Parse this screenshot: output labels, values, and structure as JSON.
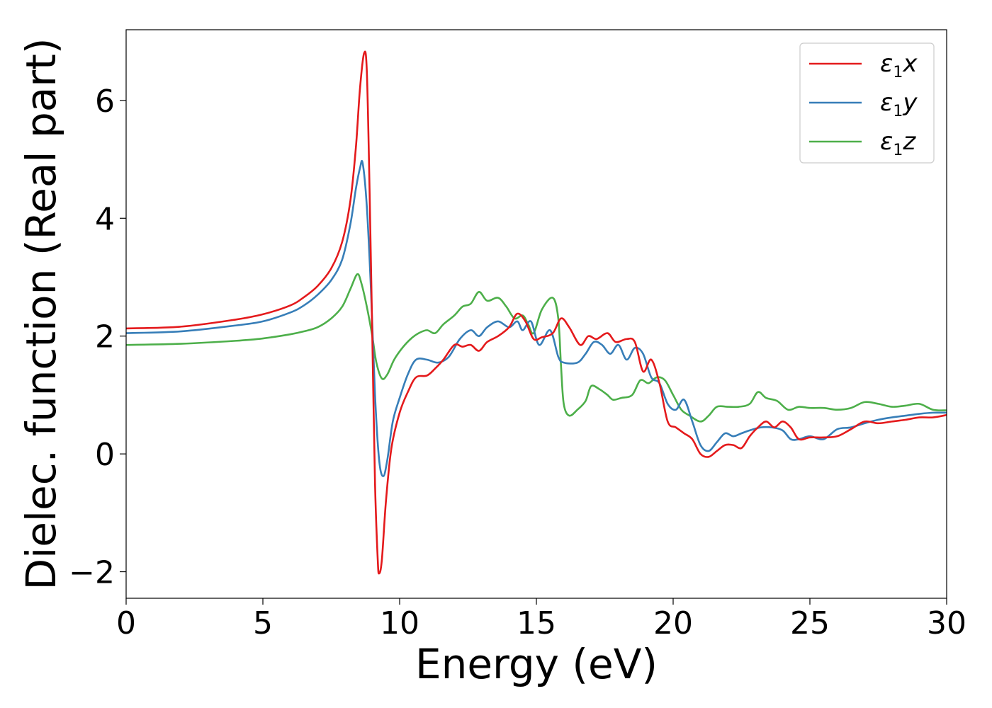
{
  "chart_data": {
    "type": "line",
    "title": "",
    "xlabel": "Energy (eV)",
    "ylabel": "Dielec. function (Real part)",
    "xlim": [
      0,
      30
    ],
    "ylim": [
      -2.45,
      7.2
    ],
    "xticks": [
      {
        "value": 0,
        "label": "0"
      },
      {
        "value": 5,
        "label": "5"
      },
      {
        "value": 10,
        "label": "10"
      },
      {
        "value": 15,
        "label": "15"
      },
      {
        "value": 20,
        "label": "20"
      },
      {
        "value": 25,
        "label": "25"
      },
      {
        "value": 30,
        "label": "30"
      }
    ],
    "yticks": [
      {
        "value": -2,
        "label": "−2"
      },
      {
        "value": 0,
        "label": "0"
      },
      {
        "value": 2,
        "label": "2"
      },
      {
        "value": 4,
        "label": "4"
      },
      {
        "value": 6,
        "label": "6"
      }
    ],
    "grid": false,
    "legend_position": "top-right",
    "series": [
      {
        "name": "ε1x",
        "legend_main": "ε",
        "legend_sub": "1",
        "legend_tail": "x",
        "color": "#e41a1c",
        "points": [
          [
            0,
            2.13
          ],
          [
            2,
            2.16
          ],
          [
            4,
            2.28
          ],
          [
            5,
            2.37
          ],
          [
            6,
            2.52
          ],
          [
            6.5,
            2.66
          ],
          [
            7,
            2.85
          ],
          [
            7.5,
            3.15
          ],
          [
            7.9,
            3.6
          ],
          [
            8.2,
            4.3
          ],
          [
            8.4,
            5.2
          ],
          [
            8.55,
            6.2
          ],
          [
            8.7,
            6.8
          ],
          [
            8.8,
            6.5
          ],
          [
            8.9,
            4.5
          ],
          [
            9.0,
            2.0
          ],
          [
            9.1,
            -0.5
          ],
          [
            9.2,
            -1.8
          ],
          [
            9.25,
            -2.03
          ],
          [
            9.35,
            -1.8
          ],
          [
            9.5,
            -0.8
          ],
          [
            9.7,
            0.1
          ],
          [
            10.0,
            0.7
          ],
          [
            10.3,
            1.05
          ],
          [
            10.6,
            1.3
          ],
          [
            11.0,
            1.33
          ],
          [
            11.3,
            1.45
          ],
          [
            11.6,
            1.6
          ],
          [
            12.0,
            1.85
          ],
          [
            12.3,
            1.82
          ],
          [
            12.6,
            1.85
          ],
          [
            12.9,
            1.75
          ],
          [
            13.2,
            1.9
          ],
          [
            13.6,
            2.0
          ],
          [
            14.0,
            2.15
          ],
          [
            14.3,
            2.38
          ],
          [
            14.6,
            2.25
          ],
          [
            14.9,
            1.95
          ],
          [
            15.2,
            1.98
          ],
          [
            15.6,
            2.05
          ],
          [
            15.9,
            2.3
          ],
          [
            16.2,
            2.15
          ],
          [
            16.6,
            1.85
          ],
          [
            16.9,
            2.0
          ],
          [
            17.2,
            1.95
          ],
          [
            17.6,
            2.05
          ],
          [
            17.9,
            1.9
          ],
          [
            18.3,
            1.95
          ],
          [
            18.6,
            1.9
          ],
          [
            18.9,
            1.4
          ],
          [
            19.2,
            1.6
          ],
          [
            19.5,
            1.2
          ],
          [
            19.8,
            0.55
          ],
          [
            20.1,
            0.45
          ],
          [
            20.4,
            0.35
          ],
          [
            20.7,
            0.25
          ],
          [
            21.0,
            0.0
          ],
          [
            21.3,
            -0.05
          ],
          [
            21.6,
            0.05
          ],
          [
            21.9,
            0.15
          ],
          [
            22.2,
            0.15
          ],
          [
            22.5,
            0.1
          ],
          [
            22.8,
            0.3
          ],
          [
            23.1,
            0.45
          ],
          [
            23.4,
            0.55
          ],
          [
            23.7,
            0.45
          ],
          [
            24.0,
            0.55
          ],
          [
            24.3,
            0.45
          ],
          [
            24.6,
            0.25
          ],
          [
            25.0,
            0.28
          ],
          [
            25.5,
            0.28
          ],
          [
            26.0,
            0.3
          ],
          [
            26.5,
            0.42
          ],
          [
            27.0,
            0.55
          ],
          [
            27.5,
            0.52
          ],
          [
            28.0,
            0.55
          ],
          [
            28.5,
            0.58
          ],
          [
            29.0,
            0.62
          ],
          [
            29.5,
            0.62
          ],
          [
            30.0,
            0.66
          ]
        ]
      },
      {
        "name": "ε1y",
        "legend_main": "ε",
        "legend_sub": "1",
        "legend_tail": "y",
        "color": "#377eb8",
        "points": [
          [
            0,
            2.05
          ],
          [
            2,
            2.08
          ],
          [
            4,
            2.18
          ],
          [
            5,
            2.25
          ],
          [
            6,
            2.4
          ],
          [
            6.5,
            2.52
          ],
          [
            7,
            2.7
          ],
          [
            7.5,
            2.95
          ],
          [
            7.9,
            3.3
          ],
          [
            8.2,
            3.9
          ],
          [
            8.4,
            4.5
          ],
          [
            8.55,
            4.85
          ],
          [
            8.65,
            4.93
          ],
          [
            8.8,
            4.2
          ],
          [
            8.95,
            2.8
          ],
          [
            9.1,
            1.0
          ],
          [
            9.25,
            -0.1
          ],
          [
            9.4,
            -0.38
          ],
          [
            9.55,
            -0.1
          ],
          [
            9.75,
            0.55
          ],
          [
            10.0,
            0.95
          ],
          [
            10.3,
            1.35
          ],
          [
            10.6,
            1.6
          ],
          [
            11.0,
            1.6
          ],
          [
            11.4,
            1.55
          ],
          [
            11.8,
            1.65
          ],
          [
            12.2,
            1.95
          ],
          [
            12.6,
            2.1
          ],
          [
            12.9,
            2.0
          ],
          [
            13.2,
            2.15
          ],
          [
            13.6,
            2.25
          ],
          [
            14.0,
            2.15
          ],
          [
            14.3,
            2.25
          ],
          [
            14.5,
            2.1
          ],
          [
            14.8,
            2.25
          ],
          [
            15.1,
            1.85
          ],
          [
            15.5,
            2.1
          ],
          [
            15.8,
            1.65
          ],
          [
            16.0,
            1.55
          ],
          [
            16.5,
            1.55
          ],
          [
            16.8,
            1.7
          ],
          [
            17.1,
            1.9
          ],
          [
            17.4,
            1.85
          ],
          [
            17.7,
            1.7
          ],
          [
            18.0,
            1.85
          ],
          [
            18.3,
            1.6
          ],
          [
            18.6,
            1.8
          ],
          [
            18.9,
            1.7
          ],
          [
            19.2,
            1.3
          ],
          [
            19.5,
            1.2
          ],
          [
            19.8,
            0.85
          ],
          [
            20.1,
            0.75
          ],
          [
            20.4,
            0.92
          ],
          [
            20.7,
            0.55
          ],
          [
            21.0,
            0.15
          ],
          [
            21.3,
            0.05
          ],
          [
            21.6,
            0.2
          ],
          [
            21.9,
            0.35
          ],
          [
            22.2,
            0.3
          ],
          [
            22.5,
            0.35
          ],
          [
            22.8,
            0.4
          ],
          [
            23.2,
            0.45
          ],
          [
            23.6,
            0.45
          ],
          [
            24.0,
            0.4
          ],
          [
            24.3,
            0.25
          ],
          [
            24.6,
            0.25
          ],
          [
            25.0,
            0.3
          ],
          [
            25.5,
            0.25
          ],
          [
            26.0,
            0.42
          ],
          [
            26.5,
            0.45
          ],
          [
            27.0,
            0.52
          ],
          [
            27.5,
            0.58
          ],
          [
            28.0,
            0.62
          ],
          [
            28.5,
            0.65
          ],
          [
            29.0,
            0.68
          ],
          [
            29.5,
            0.7
          ],
          [
            30.0,
            0.7
          ]
        ]
      },
      {
        "name": "ε1z",
        "legend_main": "ε",
        "legend_sub": "1",
        "legend_tail": "z",
        "color": "#4daf4a",
        "points": [
          [
            0,
            1.85
          ],
          [
            2,
            1.87
          ],
          [
            4,
            1.92
          ],
          [
            5,
            1.96
          ],
          [
            6,
            2.03
          ],
          [
            6.5,
            2.08
          ],
          [
            7,
            2.15
          ],
          [
            7.5,
            2.3
          ],
          [
            7.9,
            2.5
          ],
          [
            8.2,
            2.8
          ],
          [
            8.45,
            3.05
          ],
          [
            8.6,
            2.9
          ],
          [
            8.8,
            2.5
          ],
          [
            9.0,
            2.0
          ],
          [
            9.15,
            1.55
          ],
          [
            9.35,
            1.28
          ],
          [
            9.55,
            1.35
          ],
          [
            9.8,
            1.6
          ],
          [
            10.1,
            1.8
          ],
          [
            10.4,
            1.95
          ],
          [
            10.7,
            2.05
          ],
          [
            11.0,
            2.1
          ],
          [
            11.3,
            2.05
          ],
          [
            11.6,
            2.2
          ],
          [
            12.0,
            2.35
          ],
          [
            12.3,
            2.5
          ],
          [
            12.6,
            2.55
          ],
          [
            12.9,
            2.75
          ],
          [
            13.2,
            2.6
          ],
          [
            13.6,
            2.65
          ],
          [
            13.9,
            2.5
          ],
          [
            14.2,
            2.3
          ],
          [
            14.5,
            2.35
          ],
          [
            14.7,
            2.2
          ],
          [
            14.9,
            2.05
          ],
          [
            15.2,
            2.45
          ],
          [
            15.6,
            2.65
          ],
          [
            15.8,
            2.3
          ],
          [
            15.9,
            1.5
          ],
          [
            16.0,
            0.85
          ],
          [
            16.2,
            0.65
          ],
          [
            16.5,
            0.75
          ],
          [
            16.8,
            0.9
          ],
          [
            17.0,
            1.15
          ],
          [
            17.3,
            1.1
          ],
          [
            17.6,
            1.0
          ],
          [
            17.8,
            0.92
          ],
          [
            18.1,
            0.95
          ],
          [
            18.5,
            1.0
          ],
          [
            18.8,
            1.25
          ],
          [
            19.1,
            1.2
          ],
          [
            19.4,
            1.3
          ],
          [
            19.7,
            1.25
          ],
          [
            20.0,
            1.0
          ],
          [
            20.3,
            0.75
          ],
          [
            20.6,
            0.65
          ],
          [
            21.0,
            0.55
          ],
          [
            21.3,
            0.65
          ],
          [
            21.6,
            0.8
          ],
          [
            22.0,
            0.8
          ],
          [
            22.4,
            0.8
          ],
          [
            22.8,
            0.85
          ],
          [
            23.1,
            1.05
          ],
          [
            23.4,
            0.95
          ],
          [
            23.8,
            0.9
          ],
          [
            24.2,
            0.75
          ],
          [
            24.6,
            0.8
          ],
          [
            25.0,
            0.78
          ],
          [
            25.5,
            0.78
          ],
          [
            26.0,
            0.75
          ],
          [
            26.5,
            0.78
          ],
          [
            27.0,
            0.88
          ],
          [
            27.5,
            0.85
          ],
          [
            28.0,
            0.8
          ],
          [
            28.5,
            0.82
          ],
          [
            29.0,
            0.85
          ],
          [
            29.5,
            0.75
          ],
          [
            30.0,
            0.74
          ]
        ]
      }
    ]
  }
}
